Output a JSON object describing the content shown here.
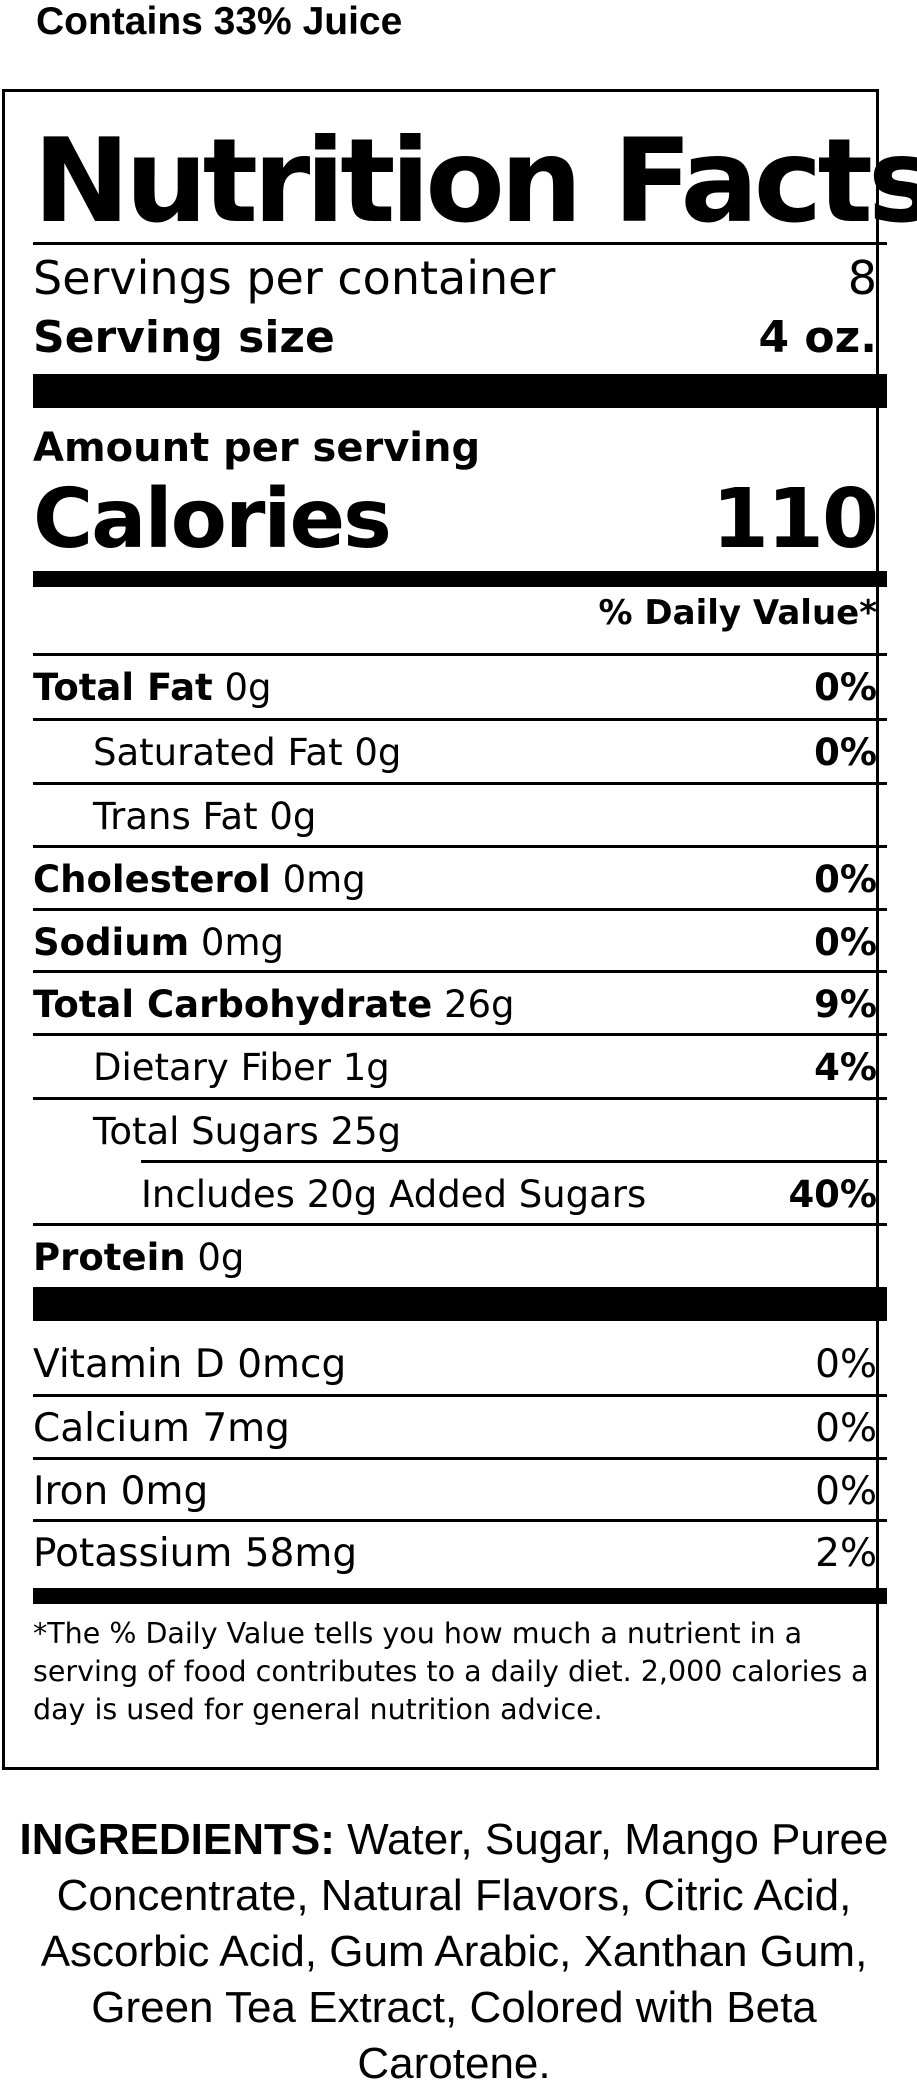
{
  "header_note": "Contains 33% Juice",
  "panel": {
    "title": "Nutrition Facts",
    "servings_label": "Servings per container",
    "servings_value": "8",
    "serving_size_label": "Serving size",
    "serving_size_value": "4 oz.",
    "amount_label": "Amount per serving",
    "calories_label": "Calories",
    "calories_value": "110",
    "dv_header": "% Daily Value*",
    "nutrients": [
      {
        "name": "Total Fat",
        "amount": "0g",
        "dv": "0%"
      },
      {
        "name": "Saturated Fat",
        "amount": "0g",
        "dv": "0%"
      },
      {
        "name": "Trans Fat",
        "amount": "0g",
        "dv": ""
      },
      {
        "name": "Cholesterol",
        "amount": "0mg",
        "dv": "0%"
      },
      {
        "name": "Sodium",
        "amount": "0mg",
        "dv": "0%"
      },
      {
        "name": "Total Carbohydrate",
        "amount": "26g",
        "dv": "9%"
      },
      {
        "name": "Dietary Fiber",
        "amount": "1g",
        "dv": "4%"
      },
      {
        "name": "Total Sugars",
        "amount": "25g",
        "dv": ""
      },
      {
        "name": "Includes 20g Added Sugars",
        "amount": "",
        "dv": "40%"
      },
      {
        "name": "Protein",
        "amount": "0g",
        "dv": ""
      }
    ],
    "vitamins": [
      {
        "text": "Vitamin D 0mcg",
        "dv": "0%"
      },
      {
        "text": "Calcium 7mg",
        "dv": "0%"
      },
      {
        "text": "Iron 0mg",
        "dv": "0%"
      },
      {
        "text": "Potassium 58mg",
        "dv": "2%"
      }
    ],
    "footnote": "*The % Daily Value tells you how much a nutrient in a serving of food contributes to a daily diet. 2,000 calories a day is used for general nutrition advice."
  },
  "ingredients": {
    "label": "INGREDIENTS:",
    "text": "Water, Sugar, Mango Puree Concentrate, Natural Flavors, Citric Acid, Ascorbic Acid, Gum Arabic, Xanthan Gum, Green Tea Extract, Colored with Beta Carotene."
  }
}
